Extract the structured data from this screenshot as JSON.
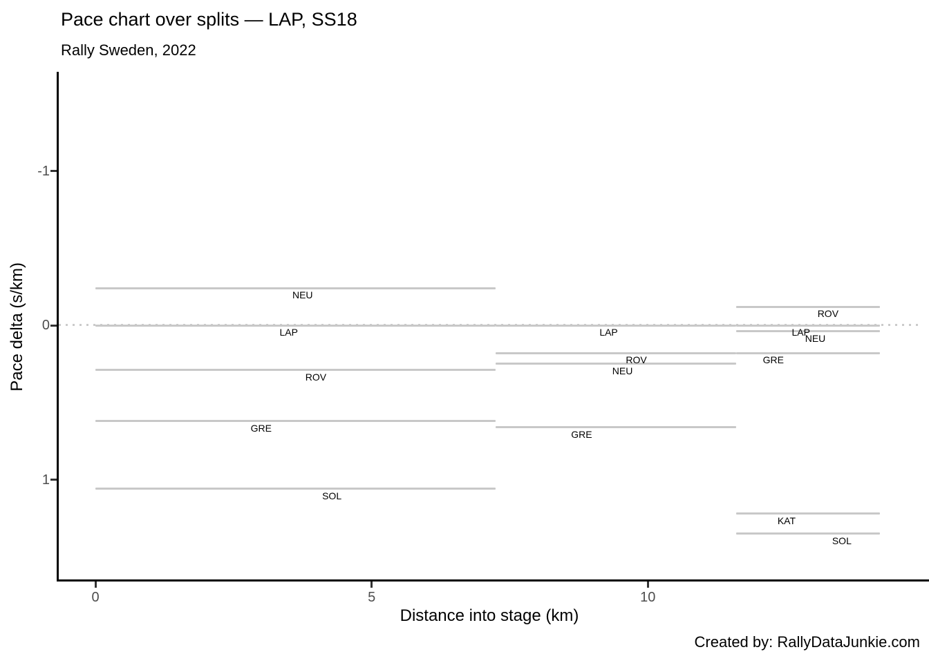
{
  "chart_data": {
    "type": "line",
    "title": "Pace chart over splits — LAP, SS18",
    "subtitle": "Rally Sweden, 2022",
    "caption": "Created by: RallyDataJunkie.com",
    "xlabel": "Distance into stage (km)",
    "ylabel": "Pace delta (s/km)",
    "x_ticks": [
      0,
      5,
      10
    ],
    "y_ticks": [
      -1,
      0,
      1
    ],
    "y_axis_reversed": true,
    "xlim": [
      -0.66,
      15.05
    ],
    "ylim_top_to_bottom": [
      -1.63,
      1.66
    ],
    "grid": false,
    "legend": "none",
    "reference_driver": "LAP",
    "reference_line": {
      "y": 0,
      "style": "dotted"
    },
    "split_boundaries_km": [
      0,
      7.25,
      11.6,
      14.2
    ],
    "series": [
      {
        "driver": "NEU",
        "segments": [
          {
            "x0": 0,
            "x1": 7.25,
            "delta": -0.24,
            "label_x": 3.75
          },
          {
            "x0": 7.25,
            "x1": 11.6,
            "delta": 0.25,
            "label_x": 9.54
          },
          {
            "x0": 11.6,
            "x1": 14.2,
            "delta": 0.04,
            "label_x": 13.03
          }
        ]
      },
      {
        "driver": "LAP",
        "segments": [
          {
            "x0": 0,
            "x1": 7.25,
            "delta": 0,
            "label_x": 3.5
          },
          {
            "x0": 7.25,
            "x1": 11.6,
            "delta": 0,
            "label_x": 9.29
          },
          {
            "x0": 11.6,
            "x1": 14.2,
            "delta": 0,
            "label_x": 12.77
          }
        ]
      },
      {
        "driver": "ROV",
        "segments": [
          {
            "x0": 0,
            "x1": 7.25,
            "delta": 0.29,
            "label_x": 3.99
          },
          {
            "x0": 7.25,
            "x1": 11.6,
            "delta": 0.18,
            "label_x": 9.79
          },
          {
            "x0": 11.6,
            "x1": 14.2,
            "delta": -0.12,
            "label_x": 13.26
          }
        ]
      },
      {
        "driver": "GRE",
        "segments": [
          {
            "x0": 0,
            "x1": 7.25,
            "delta": 0.62,
            "label_x": 3.0
          },
          {
            "x0": 7.25,
            "x1": 11.6,
            "delta": 0.66,
            "label_x": 8.8
          },
          {
            "x0": 11.6,
            "x1": 14.2,
            "delta": 0.18,
            "label_x": 12.27
          }
        ]
      },
      {
        "driver": "SOL",
        "segments": [
          {
            "x0": 0,
            "x1": 7.25,
            "delta": 1.06,
            "label_x": 4.28
          },
          {
            "x0": 11.6,
            "x1": 14.2,
            "delta": 1.35,
            "label_x": 13.51
          }
        ]
      },
      {
        "driver": "KAT",
        "segments": [
          {
            "x0": 11.6,
            "x1": 14.2,
            "delta": 1.22,
            "label_x": 12.51
          }
        ]
      }
    ]
  }
}
